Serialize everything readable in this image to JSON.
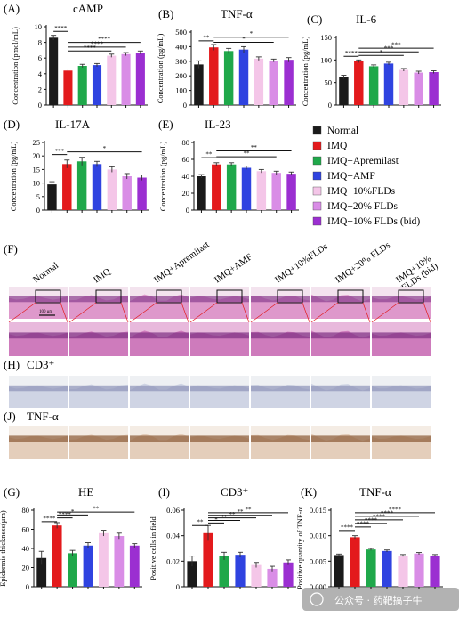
{
  "colors": {
    "Normal": "#1a1a1a",
    "IMQ": "#e31a1c",
    "IMQ+Apremilast": "#1fa84a",
    "IMQ+AMF": "#2f43e0",
    "IMQ+10%FLDs": "#f4c6e8",
    "IMQ+20% FLDs": "#d98de6",
    "IMQ+10% FLDs (bid)": "#9b2fd1"
  },
  "legend": {
    "items": [
      "Normal",
      "IMQ",
      "IMQ+Apremilast",
      "IMQ+AMF",
      "IMQ+10%FLDs",
      "IMQ+20% FLDs",
      "IMQ+10% FLDs (bid)"
    ]
  },
  "histology": {
    "panel_F": "(F)",
    "panel_H": "(H)",
    "panel_H_title": "CD3⁺",
    "panel_J": "(J)",
    "panel_J_title": "TNF-α",
    "columns": [
      "Normal",
      "IMQ",
      "IMQ+Apremilast",
      "IMQ+AMF",
      "IMQ+10%FLDs",
      "IMQ+20% FLDs",
      "IMQ+10%\nFLDs (bid)"
    ],
    "scale_bar": "100 μm"
  },
  "watermark": "公众号 · 药靶搞子牛",
  "chart_data": [
    {
      "panel": "(A)",
      "title": "cAMP",
      "type": "bar",
      "ylabel": "Concentration (pmol/mL)",
      "ylim": [
        0,
        10
      ],
      "yticks": [
        0,
        2,
        4,
        6,
        8,
        10
      ],
      "values": [
        8.6,
        4.4,
        5.0,
        5.1,
        6.3,
        6.5,
        6.7
      ],
      "errors": [
        0.3,
        0.2,
        0.2,
        0.2,
        0.2,
        0.2,
        0.2
      ],
      "sig": [
        {
          "from": 0,
          "to": 1,
          "y": 9.4,
          "label": "****"
        },
        {
          "from": 1,
          "to": 6,
          "y": 8.0,
          "label": "****"
        },
        {
          "from": 1,
          "to": 5,
          "y": 7.4,
          "label": "****"
        },
        {
          "from": 1,
          "to": 4,
          "y": 6.9,
          "label": "****"
        }
      ]
    },
    {
      "panel": "(B)",
      "title": "TNF-α",
      "type": "bar",
      "ylabel": "Concentration (pg/mL)",
      "ylim": [
        0,
        500
      ],
      "yticks": [
        0,
        100,
        200,
        300,
        400,
        500
      ],
      "values": [
        278,
        395,
        370,
        380,
        318,
        305,
        310
      ],
      "errors": [
        25,
        20,
        18,
        20,
        12,
        10,
        15
      ],
      "sig": [
        {
          "from": 0,
          "to": 1,
          "y": 440,
          "label": "**"
        },
        {
          "from": 1,
          "to": 6,
          "y": 465,
          "label": "*"
        },
        {
          "from": 1,
          "to": 5,
          "y": 430,
          "label": "*"
        }
      ]
    },
    {
      "panel": "(C)",
      "title": "IL-6",
      "type": "bar",
      "ylabel": "Concentration (pg/mL)",
      "ylim": [
        0,
        150
      ],
      "yticks": [
        0,
        50,
        100,
        150
      ],
      "values": [
        62,
        97,
        86,
        92,
        78,
        72,
        73
      ],
      "errors": [
        4,
        3,
        3,
        3,
        3,
        3,
        3
      ],
      "sig": [
        {
          "from": 0,
          "to": 1,
          "y": 108,
          "label": "****"
        },
        {
          "from": 1,
          "to": 6,
          "y": 126,
          "label": "***"
        },
        {
          "from": 1,
          "to": 5,
          "y": 118,
          "label": "***"
        },
        {
          "from": 1,
          "to": 4,
          "y": 110,
          "label": "*"
        }
      ]
    },
    {
      "panel": "(D)",
      "title": "IL-17A",
      "type": "bar",
      "ylabel": "Concentration (pg/mL)",
      "ylim": [
        0,
        25
      ],
      "yticks": [
        0,
        5,
        10,
        15,
        20,
        25
      ],
      "values": [
        9.5,
        17,
        18,
        17,
        15,
        12.5,
        12
      ],
      "errors": [
        1,
        1.5,
        1.5,
        1,
        1,
        1,
        1
      ],
      "sig": [
        {
          "from": 0,
          "to": 1,
          "y": 20.5,
          "label": "***"
        },
        {
          "from": 1,
          "to": 6,
          "y": 21.5,
          "label": "*"
        }
      ]
    },
    {
      "panel": "(E)",
      "title": "IL-23",
      "type": "bar",
      "ylabel": "Concentration (pg/mL)",
      "ylim": [
        0,
        80
      ],
      "yticks": [
        0,
        20,
        40,
        60,
        80
      ],
      "values": [
        40,
        54,
        54,
        50,
        46,
        44,
        43
      ],
      "errors": [
        2,
        2,
        2,
        2,
        2,
        2,
        2
      ],
      "sig": [
        {
          "from": 0,
          "to": 1,
          "y": 62,
          "label": "**"
        },
        {
          "from": 1,
          "to": 6,
          "y": 70,
          "label": "**"
        },
        {
          "from": 1,
          "to": 5,
          "y": 63,
          "label": "**"
        }
      ]
    },
    {
      "panel": "(G)",
      "title": "HE",
      "type": "bar",
      "ylabel": "Epidermis thickness(μm)",
      "ylim": [
        0,
        80
      ],
      "yticks": [
        0,
        20,
        40,
        60,
        80
      ],
      "values": [
        30,
        64,
        35,
        43,
        56,
        53,
        43
      ],
      "errors": [
        7,
        3,
        3,
        3,
        3,
        3,
        2
      ],
      "sig": [
        {
          "from": 0,
          "to": 1,
          "y": 68,
          "label": "****"
        },
        {
          "from": 1,
          "to": 2,
          "y": 72,
          "label": "****"
        },
        {
          "from": 1,
          "to": 3,
          "y": 75,
          "label": "*"
        },
        {
          "from": 1,
          "to": 6,
          "y": 78,
          "label": "**"
        }
      ]
    },
    {
      "panel": "(I)",
      "title": "CD3⁺",
      "type": "bar",
      "ylabel": "Positive cells in field",
      "ylim": [
        0,
        0.06
      ],
      "yticks": [
        0,
        0.02,
        0.04,
        0.06
      ],
      "values": [
        0.02,
        0.042,
        0.024,
        0.025,
        0.017,
        0.014,
        0.019
      ],
      "errors": [
        0.004,
        0.006,
        0.003,
        0.002,
        0.002,
        0.002,
        0.002
      ],
      "sig": [
        {
          "from": 0,
          "to": 1,
          "y": 0.048,
          "label": "**"
        },
        {
          "from": 1,
          "to": 2,
          "y": 0.05,
          "label": "*"
        },
        {
          "from": 1,
          "to": 3,
          "y": 0.052,
          "label": "**"
        },
        {
          "from": 1,
          "to": 4,
          "y": 0.054,
          "label": "**"
        },
        {
          "from": 1,
          "to": 5,
          "y": 0.056,
          "label": "**"
        },
        {
          "from": 1,
          "to": 6,
          "y": 0.058,
          "label": "**"
        }
      ]
    },
    {
      "panel": "(K)",
      "title": "TNF-α",
      "type": "bar",
      "ylabel": "Positive quantity of TNF-α",
      "ylim": [
        0,
        0.015
      ],
      "yticks": [
        0,
        0.005,
        0.01,
        0.015
      ],
      "ytick_labels": [
        "0.000",
        "0.005",
        "0.010",
        "0.015"
      ],
      "values": [
        0.0062,
        0.0097,
        0.0073,
        0.007,
        0.0061,
        0.0065,
        0.0061
      ],
      "errors": [
        0.0002,
        0.0003,
        0.0002,
        0.0002,
        0.0002,
        0.0002,
        0.0002
      ],
      "sig": [
        {
          "from": 0,
          "to": 1,
          "y": 0.011,
          "label": "****"
        },
        {
          "from": 1,
          "to": 2,
          "y": 0.0117,
          "label": "****"
        },
        {
          "from": 1,
          "to": 3,
          "y": 0.0124,
          "label": "****"
        },
        {
          "from": 1,
          "to": 4,
          "y": 0.0131,
          "label": "****"
        },
        {
          "from": 1,
          "to": 5,
          "y": 0.0138,
          "label": "****"
        },
        {
          "from": 1,
          "to": 6,
          "y": 0.0145,
          "label": "****"
        }
      ]
    }
  ]
}
